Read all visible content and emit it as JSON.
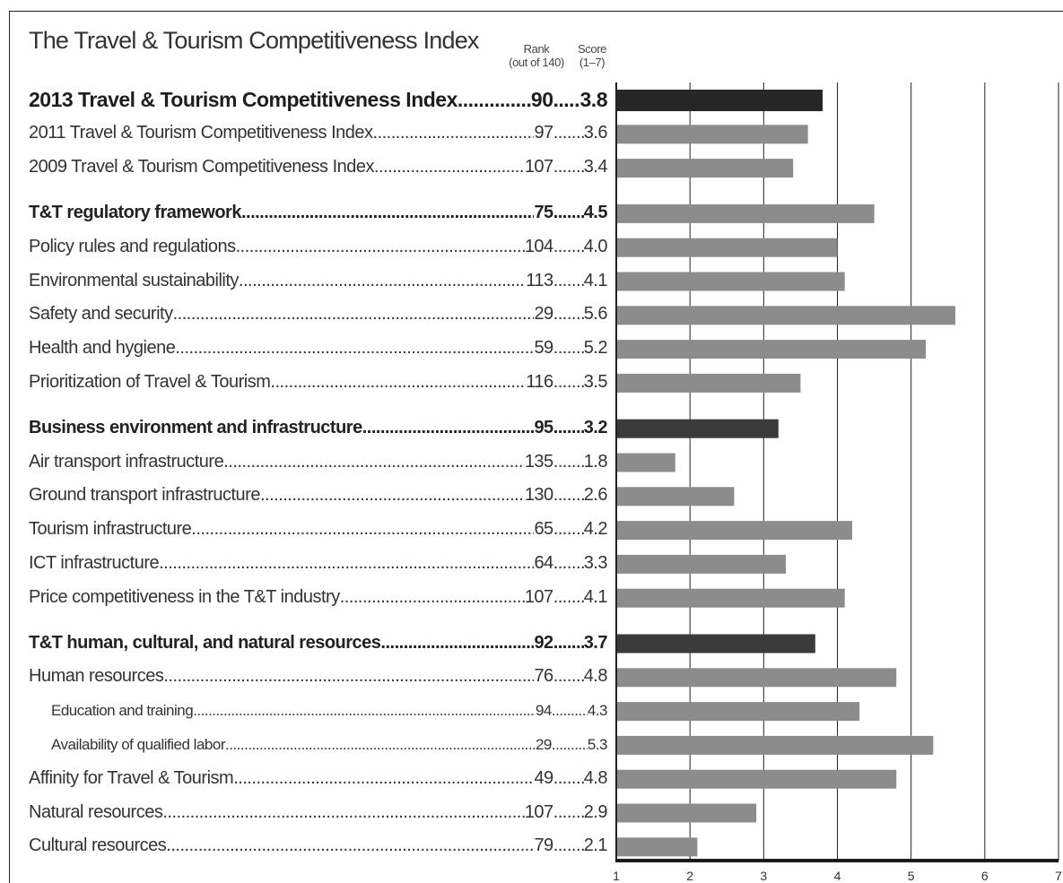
{
  "header": {
    "title": "The Travel & Tourism Competitiveness Index",
    "rank_label_line1": "Rank",
    "rank_label_line2": "(out of 140)",
    "score_label_line1": "Score",
    "score_label_line2": "(1–7)"
  },
  "colors": {
    "headline_bar": "#262626",
    "subindex_bar": "#3a3a3a",
    "pillar_bar": "#8c8c8c"
  },
  "chart_data": {
    "type": "bar",
    "orientation": "horizontal",
    "title": "The Travel & Tourism Competitiveness Index",
    "xlim": [
      1,
      7
    ],
    "x_ticks": [
      "1",
      "2",
      "3",
      "4",
      "5",
      "6",
      "7"
    ],
    "grid": true,
    "categories": [
      "2013 Travel & Tourism Competitiveness Index",
      "2011 Travel & Tourism Competitiveness Index",
      "2009 Travel & Tourism Competitiveness Index",
      "T&T regulatory framework",
      "Policy rules and regulations",
      "Environmental sustainability",
      "Safety and security",
      "Health and hygiene",
      "Prioritization of Travel & Tourism",
      "Business environment and infrastructure",
      "Air transport infrastructure",
      "Ground transport infrastructure",
      "Tourism infrastructure",
      "ICT infrastructure",
      "Price competitiveness in the T&T industry",
      "T&T human, cultural, and natural resources",
      "Human resources",
      "Education and training",
      "Availability of qualified labor",
      "Affinity for Travel & Tourism",
      "Natural resources",
      "Cultural resources"
    ],
    "rows": [
      {
        "label": "2013 Travel & Tourism Competitiveness Index",
        "rank": "90",
        "score": "3.8",
        "value": 3.8,
        "level": 0,
        "group": 0,
        "bar": "headline"
      },
      {
        "label": "2011 Travel & Tourism Competitiveness Index",
        "rank": "97",
        "score": "3.6",
        "value": 3.6,
        "level": 2,
        "group": 0,
        "bar": "pillar"
      },
      {
        "label": "2009 Travel & Tourism Competitiveness Index",
        "rank": "107",
        "score": "3.4",
        "value": 3.4,
        "level": 2,
        "group": 0,
        "bar": "pillar"
      },
      {
        "label": "T&T regulatory framework",
        "rank": "75",
        "score": "4.5",
        "value": 4.5,
        "level": 1,
        "group": 1,
        "bar": "pillar"
      },
      {
        "label": "Policy rules and regulations",
        "rank": "104",
        "score": "4.0",
        "value": 4.0,
        "level": 2,
        "group": 1,
        "bar": "pillar"
      },
      {
        "label": "Environmental sustainability",
        "rank": "113",
        "score": "4.1",
        "value": 4.1,
        "level": 2,
        "group": 1,
        "bar": "pillar"
      },
      {
        "label": "Safety and security",
        "rank": "29",
        "score": "5.6",
        "value": 5.6,
        "level": 2,
        "group": 1,
        "bar": "pillar"
      },
      {
        "label": "Health and hygiene",
        "rank": "59",
        "score": "5.2",
        "value": 5.2,
        "level": 2,
        "group": 1,
        "bar": "pillar"
      },
      {
        "label": "Prioritization of Travel & Tourism",
        "rank": "116",
        "score": "3.5",
        "value": 3.5,
        "level": 2,
        "group": 1,
        "bar": "pillar"
      },
      {
        "label": "Business environment and infrastructure",
        "rank": "95",
        "score": "3.2",
        "value": 3.2,
        "level": 1,
        "group": 2,
        "bar": "subindex"
      },
      {
        "label": "Air transport infrastructure",
        "rank": "135",
        "score": "1.8",
        "value": 1.8,
        "level": 2,
        "group": 2,
        "bar": "pillar"
      },
      {
        "label": "Ground transport infrastructure",
        "rank": "130",
        "score": "2.6",
        "value": 2.6,
        "level": 2,
        "group": 2,
        "bar": "pillar"
      },
      {
        "label": "Tourism infrastructure",
        "rank": "65",
        "score": "4.2",
        "value": 4.2,
        "level": 2,
        "group": 2,
        "bar": "pillar"
      },
      {
        "label": "ICT infrastructure",
        "rank": "64",
        "score": "3.3",
        "value": 3.3,
        "level": 2,
        "group": 2,
        "bar": "pillar"
      },
      {
        "label": "Price competitiveness in the T&T industry",
        "rank": "107",
        "score": "4.1",
        "value": 4.1,
        "level": 2,
        "group": 2,
        "bar": "pillar"
      },
      {
        "label": "T&T human, cultural, and natural resources",
        "rank": "92",
        "score": "3.7",
        "value": 3.7,
        "level": 1,
        "group": 3,
        "bar": "subindex"
      },
      {
        "label": "Human resources",
        "rank": "76",
        "score": "4.8",
        "value": 4.8,
        "level": 2,
        "group": 3,
        "bar": "pillar"
      },
      {
        "label": "Education and training",
        "rank": "94",
        "score": "4.3",
        "value": 4.3,
        "level": 3,
        "group": 3,
        "bar": "pillar"
      },
      {
        "label": "Availability of qualified labor",
        "rank": "29",
        "score": "5.3",
        "value": 5.3,
        "level": 3,
        "group": 3,
        "bar": "pillar"
      },
      {
        "label": "Affinity for Travel & Tourism",
        "rank": "49",
        "score": "4.8",
        "value": 4.8,
        "level": 2,
        "group": 3,
        "bar": "pillar"
      },
      {
        "label": "Natural resources",
        "rank": "107",
        "score": "2.9",
        "value": 2.9,
        "level": 2,
        "group": 3,
        "bar": "pillar"
      },
      {
        "label": "Cultural resources",
        "rank": "79",
        "score": "2.1",
        "value": 2.1,
        "level": 2,
        "group": 3,
        "bar": "pillar"
      }
    ]
  }
}
